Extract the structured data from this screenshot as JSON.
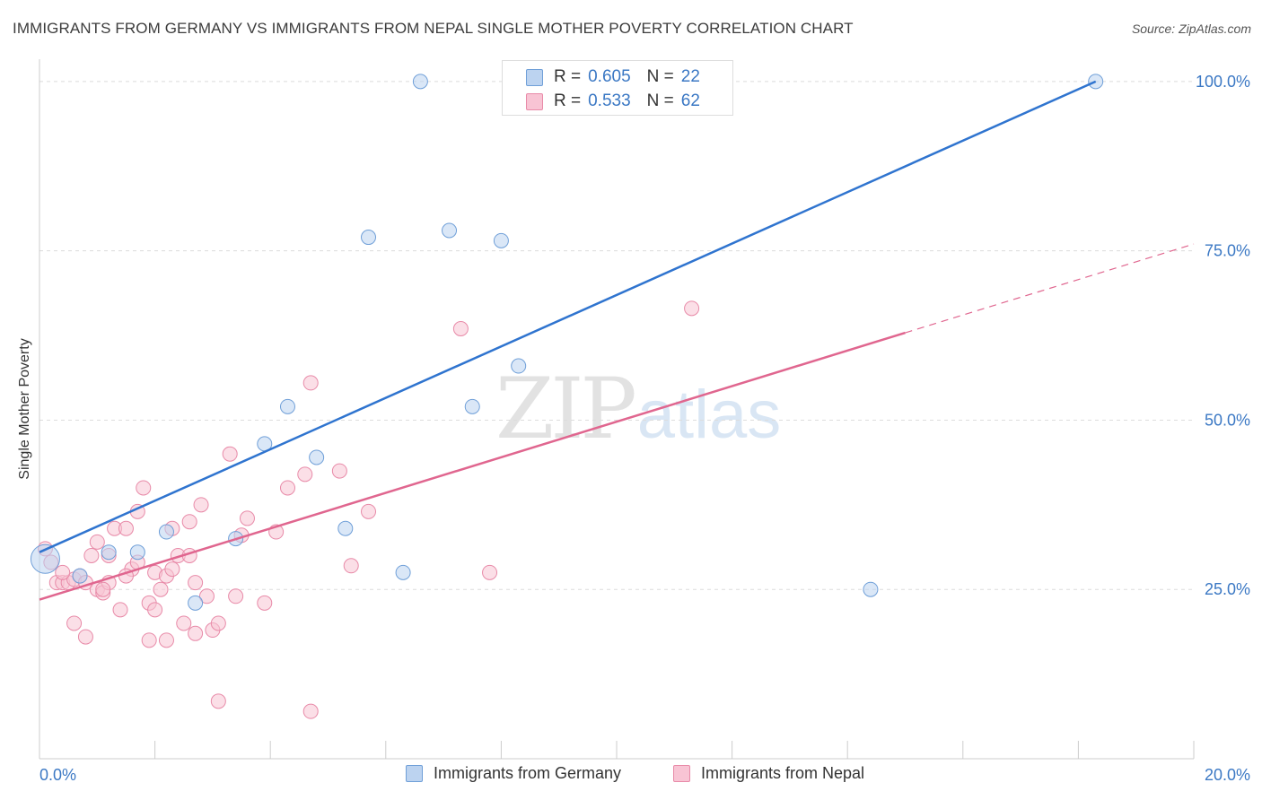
{
  "title": "IMMIGRANTS FROM GERMANY VS IMMIGRANTS FROM NEPAL SINGLE MOTHER POVERTY CORRELATION CHART",
  "source": "Source: ZipAtlas.com",
  "watermark": {
    "zip": "ZIP",
    "atlas": "atlas"
  },
  "colors": {
    "germany": "#6f9fd8",
    "germany_fill": "#bcd3f0",
    "germany_line": "#2f74cf",
    "nepal": "#e88aa8",
    "nepal_fill": "#f8c4d4",
    "nepal_line": "#e0668f",
    "tick_label": "#3b78c4"
  },
  "legend_top": [
    {
      "r_label": "R =",
      "r_value": "0.605",
      "n_label": "N =",
      "n_value": "22"
    },
    {
      "r_label": "R =",
      "r_value": "0.533",
      "n_label": "N =",
      "n_value": "62"
    }
  ],
  "chart_data": {
    "type": "scatter",
    "title": "IMMIGRANTS FROM GERMANY VS IMMIGRANTS FROM NEPAL SINGLE MOTHER POVERTY CORRELATION CHART",
    "xlabel": "",
    "ylabel": "Single Mother Poverty",
    "xlim": [
      0,
      20
    ],
    "ylim": [
      0,
      102.5
    ],
    "x_tick_labels": [
      "0.0%",
      "20.0%"
    ],
    "y_tick_labels": [
      "25.0%",
      "50.0%",
      "75.0%",
      "100.0%"
    ],
    "y_ticks": [
      25,
      50,
      75,
      100
    ],
    "grid": true,
    "legend_position": "top-center and bottom",
    "series": [
      {
        "name": "Immigrants from Germany",
        "points": [
          [
            0.1,
            29.5
          ],
          [
            0.7,
            27
          ],
          [
            1.2,
            30.5
          ],
          [
            1.7,
            30.5
          ],
          [
            2.2,
            33.5
          ],
          [
            2.7,
            23
          ],
          [
            3.4,
            32.5
          ],
          [
            3.9,
            46.5
          ],
          [
            4.3,
            52
          ],
          [
            4.8,
            44.5
          ],
          [
            5.3,
            34
          ],
          [
            5.7,
            77
          ],
          [
            6.3,
            27.5
          ],
          [
            6.6,
            100
          ],
          [
            7.1,
            78
          ],
          [
            7.5,
            52
          ],
          [
            8.0,
            76.5
          ],
          [
            8.3,
            58
          ],
          [
            10.6,
            100
          ],
          [
            10.7,
            100
          ],
          [
            14.4,
            25
          ],
          [
            18.3,
            100
          ]
        ],
        "trend": [
          [
            0,
            30.5
          ],
          [
            18.3,
            100
          ]
        ]
      },
      {
        "name": "Immigrants from Nepal",
        "points": [
          [
            0.1,
            31
          ],
          [
            0.2,
            29
          ],
          [
            0.3,
            26
          ],
          [
            0.4,
            26
          ],
          [
            0.5,
            26
          ],
          [
            0.6,
            26.5
          ],
          [
            0.7,
            27
          ],
          [
            0.8,
            26
          ],
          [
            0.9,
            30
          ],
          [
            1.0,
            32
          ],
          [
            1.0,
            25
          ],
          [
            1.1,
            24.5
          ],
          [
            1.2,
            26
          ],
          [
            1.2,
            30
          ],
          [
            1.3,
            34
          ],
          [
            1.4,
            22
          ],
          [
            1.5,
            34
          ],
          [
            1.6,
            28
          ],
          [
            1.7,
            36.5
          ],
          [
            1.7,
            29
          ],
          [
            1.8,
            40
          ],
          [
            1.9,
            17.5
          ],
          [
            1.9,
            23
          ],
          [
            2.0,
            27.5
          ],
          [
            2.0,
            22
          ],
          [
            2.1,
            25
          ],
          [
            2.2,
            27
          ],
          [
            2.2,
            17.5
          ],
          [
            2.3,
            28
          ],
          [
            2.4,
            30
          ],
          [
            2.5,
            20
          ],
          [
            2.6,
            35
          ],
          [
            2.6,
            30
          ],
          [
            2.7,
            18.5
          ],
          [
            2.8,
            37.5
          ],
          [
            2.9,
            24
          ],
          [
            3.0,
            19
          ],
          [
            3.1,
            20
          ],
          [
            3.1,
            8.5
          ],
          [
            3.3,
            45
          ],
          [
            3.4,
            24
          ],
          [
            3.5,
            33
          ],
          [
            3.6,
            35.5
          ],
          [
            3.9,
            23
          ],
          [
            4.1,
            33.5
          ],
          [
            4.3,
            40
          ],
          [
            4.6,
            42
          ],
          [
            4.7,
            7
          ],
          [
            4.7,
            55.5
          ],
          [
            5.2,
            42.5
          ],
          [
            5.4,
            28.5
          ],
          [
            5.7,
            36.5
          ],
          [
            7.3,
            63.5
          ],
          [
            7.8,
            27.5
          ],
          [
            11.3,
            66.5
          ],
          [
            0.6,
            20
          ],
          [
            0.8,
            18
          ],
          [
            1.1,
            25
          ],
          [
            1.5,
            27
          ],
          [
            2.3,
            34
          ],
          [
            2.7,
            26
          ],
          [
            0.4,
            27.5
          ]
        ],
        "trend": [
          [
            0,
            23.5
          ],
          [
            15.0,
            62.9
          ]
        ],
        "trend_extension": [
          [
            15.0,
            62.9
          ],
          [
            20,
            76
          ]
        ]
      }
    ]
  },
  "legend_bottom": [
    {
      "label": "Immigrants from Germany"
    },
    {
      "label": "Immigrants from Nepal"
    }
  ]
}
